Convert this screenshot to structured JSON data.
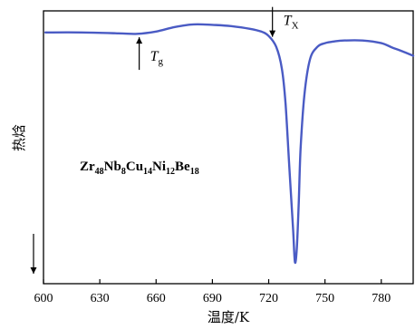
{
  "chart_data": {
    "type": "line",
    "xlabel": "温度/K",
    "ylabel": "热焓",
    "xlim": [
      600,
      797
    ],
    "ylim": [
      -14,
      1.2
    ],
    "xticks": [
      600,
      630,
      660,
      690,
      720,
      750,
      780
    ],
    "grid": false,
    "y_direction_note": "↓",
    "series": [
      {
        "color": "#4a5bc4",
        "x": [
          601,
          620,
          640,
          650,
          660,
          670,
          680,
          690,
          700,
          710,
          716,
          720,
          724,
          727,
          729,
          731,
          733,
          734,
          735,
          736,
          737,
          739,
          742,
          746,
          750,
          755,
          760,
          770,
          780,
          786,
          790,
          797
        ],
        "y": [
          0,
          0,
          -0.05,
          -0.08,
          0.05,
          0.3,
          0.45,
          0.42,
          0.35,
          0.2,
          0.05,
          -0.2,
          -0.8,
          -2.0,
          -4.0,
          -7.5,
          -11.0,
          -12.8,
          -12.0,
          -9.5,
          -6.5,
          -3.5,
          -1.5,
          -0.8,
          -0.6,
          -0.5,
          -0.45,
          -0.45,
          -0.6,
          -0.85,
          -1.0,
          -1.3
        ]
      }
    ],
    "annotations": [
      {
        "main": "T",
        "sub": "g",
        "x": 651,
        "kind": "up-arrow"
      },
      {
        "main": "T",
        "sub": "X",
        "x": 722,
        "kind": "down-arrow"
      }
    ],
    "formula": [
      {
        "text": "Zr",
        "sub": false
      },
      {
        "text": "48",
        "sub": true
      },
      {
        "text": "Nb",
        "sub": false
      },
      {
        "text": "8",
        "sub": true
      },
      {
        "text": "Cu",
        "sub": false
      },
      {
        "text": "14",
        "sub": true
      },
      {
        "text": "Ni",
        "sub": false
      },
      {
        "text": "12",
        "sub": true
      },
      {
        "text": "Be",
        "sub": false
      },
      {
        "text": "18",
        "sub": true
      }
    ]
  }
}
